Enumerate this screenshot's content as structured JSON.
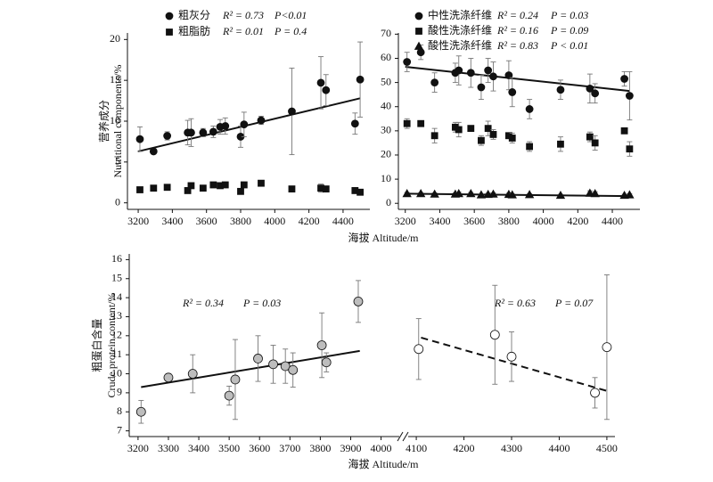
{
  "chart_data": [
    {
      "type": "scatter",
      "y_label": [
        "营养成分",
        "Nutritional components/%"
      ],
      "x_label": "海拔 Altitude/m",
      "xlim": [
        3137,
        4557
      ],
      "xticks": [
        3200,
        3400,
        3600,
        3800,
        4000,
        4200,
        4400
      ],
      "ylim": [
        -0.8,
        20.8
      ],
      "yticks": [
        0,
        5,
        10,
        15,
        20
      ],
      "x": [
        3210,
        3290,
        3370,
        3490,
        3510,
        3580,
        3640,
        3680,
        3710,
        3800,
        3820,
        3920,
        4100,
        4270,
        4300,
        4470,
        4500
      ],
      "series": [
        {
          "name": "粗灰分",
          "r2_label": "R² = 0.73",
          "p_label": "P<0.01",
          "marker": "circle",
          "color": "#111111",
          "values": [
            7.8,
            6.3,
            8.2,
            8.6,
            8.6,
            8.6,
            8.7,
            9.3,
            9.4,
            8.1,
            9.6,
            10.1,
            11.2,
            14.7,
            13.8,
            9.7,
            15.1
          ],
          "errors": [
            1.5,
            0.3,
            0.5,
            1.5,
            1.7,
            0.5,
            0.7,
            0.9,
            1.0,
            1.3,
            1.5,
            0.5,
            5.3,
            3.2,
            1.9,
            1.3,
            4.6
          ],
          "fit": {
            "x": [
              3200,
              4500
            ],
            "y": [
              6.3,
              12.8
            ]
          }
        },
        {
          "name": "粗脂肪",
          "r2_label": "R² = 0.01",
          "p_label": "P = 0.4",
          "marker": "square",
          "color": "#111111",
          "values": [
            1.6,
            1.8,
            1.9,
            1.5,
            2.1,
            1.8,
            2.2,
            2.1,
            2.2,
            1.4,
            2.2,
            2.4,
            1.7,
            1.8,
            1.7,
            1.5,
            1.3
          ],
          "errors": [
            0.1,
            0.1,
            0.1,
            0.1,
            0.1,
            0.1,
            0.2,
            0.2,
            0.2,
            0.1,
            0.2,
            0.1,
            0.3,
            0.5,
            0.2,
            0.2,
            0.1
          ]
        }
      ]
    },
    {
      "type": "scatter",
      "xlim": [
        3160,
        4560
      ],
      "xticks": [
        3200,
        3400,
        3600,
        3800,
        4000,
        4200,
        4400
      ],
      "ylim": [
        -2.5,
        70.5
      ],
      "yticks": [
        0,
        10,
        20,
        30,
        40,
        50,
        60,
        70
      ],
      "x": [
        3210,
        3290,
        3370,
        3490,
        3510,
        3580,
        3640,
        3680,
        3710,
        3800,
        3820,
        3920,
        4100,
        4270,
        4300,
        4470,
        4500
      ],
      "series": [
        {
          "name": "中性洗涤纤维",
          "r2_label": "R² = 0.24",
          "p_label": "P = 0.03",
          "marker": "circle",
          "color": "#111111",
          "values": [
            58.5,
            62.5,
            50,
            54,
            55,
            54,
            48,
            55,
            52.5,
            53,
            46,
            39,
            47,
            47.5,
            45.5,
            51.5,
            44.5
          ],
          "errors": [
            4,
            3,
            4,
            4,
            6,
            6,
            5,
            5,
            6,
            6,
            6,
            4,
            4,
            6,
            4,
            3,
            10
          ],
          "fit": {
            "x": [
              3200,
              4500
            ],
            "y": [
              56.5,
              46.5
            ]
          }
        },
        {
          "name": "酸性洗涤纤维",
          "r2_label": "R² = 0.16",
          "p_label": "P = 0.09",
          "marker": "square",
          "color": "#111111",
          "values": [
            33,
            33,
            28,
            31.5,
            30.5,
            31,
            26,
            31,
            28.5,
            28,
            27,
            23.5,
            24.5,
            27.5,
            25,
            30,
            22.5
          ],
          "errors": [
            2,
            1,
            3,
            2,
            3,
            1,
            2,
            3,
            2,
            1,
            2,
            2,
            3,
            2,
            3,
            1,
            3
          ]
        },
        {
          "name": "酸性洗涤纤维",
          "r2_label": "R² = 0.83",
          "p_label": "P < 0.01",
          "marker": "triangle",
          "color": "#111111",
          "values": [
            4,
            4,
            3.8,
            3.8,
            4,
            4,
            3.5,
            3.7,
            3.8,
            3.7,
            3.5,
            3.6,
            3.3,
            4.2,
            4,
            3.3,
            3.5
          ],
          "errors": [
            0.5,
            0.4,
            0.5,
            0.5,
            0.6,
            0.5,
            0.4,
            0.5,
            0.5,
            0.5,
            0.4,
            0.4,
            0.4,
            1,
            0.8,
            0.4,
            0.5
          ],
          "fit": {
            "x": [
              3200,
              4500
            ],
            "y": [
              4,
              3
            ]
          }
        }
      ]
    },
    {
      "type": "scatter",
      "y_label": [
        "粗蛋白含量",
        "Crude protein content/%"
      ],
      "x_label": "海拔 Altitude/m",
      "xlim": [
        3171,
        4060
      ],
      "xticks": [
        3200,
        3300,
        3400,
        3500,
        3600,
        3700,
        3800,
        3900,
        4000
      ],
      "x2lim": [
        4083,
        4517
      ],
      "x2ticks": [
        4100,
        4200,
        4300,
        4400,
        4500
      ],
      "ylim": [
        6.7,
        16.3
      ],
      "yticks": [
        7,
        8,
        9,
        10,
        11,
        12,
        13,
        14,
        15,
        16
      ],
      "annotations": [
        {
          "r2_label": "R² = 0.34",
          "p_label": "P = 0.03"
        },
        {
          "r2_label": "R² = 0.63",
          "p_label": "P = 0.07"
        }
      ],
      "series": [
        {
          "marker": "circle",
          "color": "#bdbdbd",
          "x": [
            3210,
            3300,
            3380,
            3500,
            3520,
            3595,
            3645,
            3685,
            3710,
            3805,
            3820,
            3925
          ],
          "values": [
            8.0,
            9.8,
            10.0,
            8.85,
            9.7,
            10.8,
            10.5,
            10.4,
            10.2,
            11.5,
            10.6,
            13.8
          ],
          "errors": [
            0.6,
            0.2,
            1.0,
            0.5,
            2.1,
            1.2,
            1.0,
            0.9,
            0.9,
            1.7,
            0.5,
            1.1
          ],
          "fit": {
            "x": [
              3210,
              3930
            ],
            "y": [
              9.3,
              11.2
            ],
            "dash": false
          }
        },
        {
          "axis": "x2",
          "marker": "circle",
          "color": "#ffffff",
          "x": [
            4105,
            4265,
            4300,
            4475,
            4500
          ],
          "values": [
            11.3,
            12.05,
            10.9,
            9.0,
            11.4
          ],
          "errors": [
            1.6,
            2.6,
            1.3,
            0.8,
            3.8
          ],
          "fit": {
            "x": [
              4110,
              4500
            ],
            "y": [
              11.9,
              9.1
            ],
            "dash": true
          }
        }
      ]
    }
  ]
}
